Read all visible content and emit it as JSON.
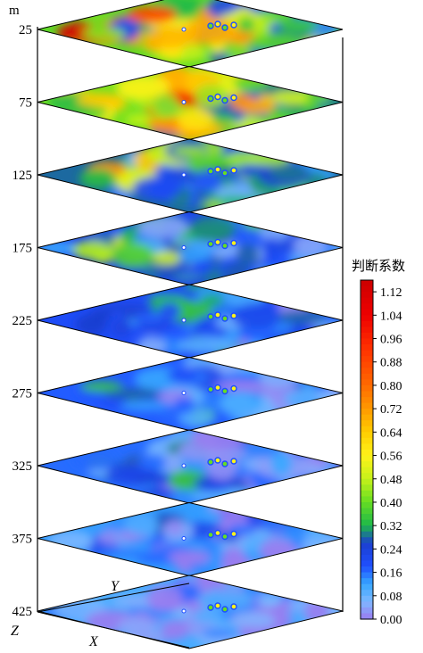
{
  "chart_data": {
    "type": "heatmap",
    "z_unit": "m",
    "z_axis_letter": "Z",
    "x_axis_letter": "X",
    "y_axis_letter": "Y",
    "depths": [
      25,
      75,
      125,
      175,
      225,
      275,
      325,
      375,
      425
    ],
    "slices": [
      {
        "depth": 25,
        "level": 0.62
      },
      {
        "depth": 75,
        "level": 0.66
      },
      {
        "depth": 125,
        "level": 0.42
      },
      {
        "depth": 175,
        "level": 0.3
      },
      {
        "depth": 225,
        "level": 0.26
      },
      {
        "depth": 275,
        "level": 0.22
      },
      {
        "depth": 325,
        "level": 0.2
      },
      {
        "depth": 375,
        "level": 0.14
      },
      {
        "depth": 425,
        "level": 0.1
      }
    ],
    "colorbar": {
      "title": "判断系数",
      "min": 0.0,
      "max": 1.16,
      "ticks": [
        "1.12",
        "1.04",
        "0.96",
        "0.88",
        "0.80",
        "0.72",
        "0.64",
        "0.56",
        "0.48",
        "0.40",
        "0.32",
        "0.24",
        "0.16",
        "0.08",
        "0.00"
      ],
      "tick_values": [
        1.12,
        1.04,
        0.96,
        0.88,
        0.8,
        0.72,
        0.64,
        0.56,
        0.48,
        0.4,
        0.32,
        0.24,
        0.16,
        0.08,
        0.0
      ],
      "colors": [
        "#9a7cf0",
        "#7fb7ff",
        "#36a6ff",
        "#1f4fff",
        "#1b3fcf",
        "#1db84a",
        "#66dd22",
        "#c6f21a",
        "#fff21a",
        "#ffcc00",
        "#ff9900",
        "#ff6a00",
        "#ff3300",
        "#ee0000",
        "#cc0000"
      ]
    }
  }
}
